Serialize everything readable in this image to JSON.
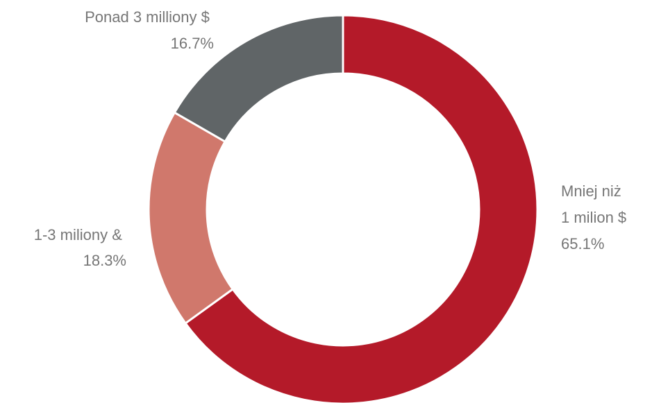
{
  "chart_data": {
    "type": "pie",
    "variant": "donut",
    "start_angle_deg": 0,
    "direction": "clockwise",
    "slices": [
      {
        "label_lines": [
          "Mniej niż",
          "1 milion $"
        ],
        "value": 65.1,
        "value_label": "65.1%",
        "color": "#B41A29"
      },
      {
        "label_lines": [
          "1-3 miliony &"
        ],
        "value": 18.3,
        "value_label": "18.3%",
        "color": "#D0786C"
      },
      {
        "label_lines": [
          "Ponad 3 milliony $"
        ],
        "value": 16.7,
        "value_label": "16.7%",
        "color": "#606567"
      }
    ],
    "legend": "none",
    "label_color": "#767676"
  }
}
